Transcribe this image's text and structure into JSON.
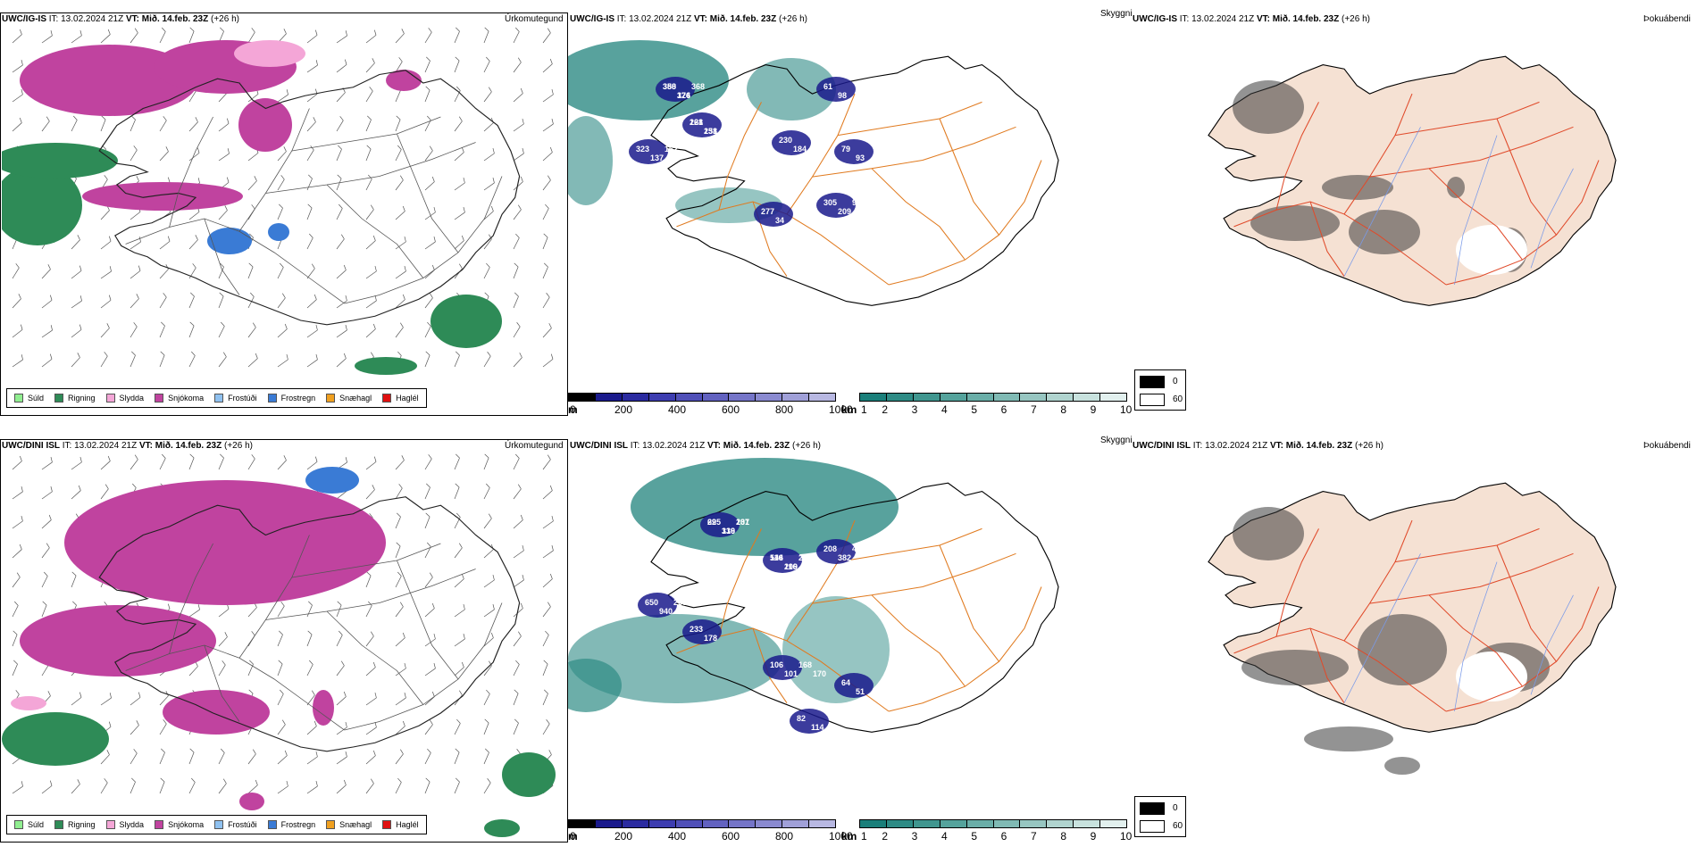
{
  "rows": [
    {
      "model": "UWC/IG-IS",
      "it_label": "IT:",
      "it_value": "13.02.2024 21Z",
      "vt_label": "VT:",
      "vt_value": "Mið. 14.feb. 23Z",
      "lead": "(+26 h)"
    },
    {
      "model": "UWC/DINI ISL",
      "it_label": "IT:",
      "it_value": "13.02.2024 21Z",
      "vt_label": "VT:",
      "vt_value": "Mið. 14.feb. 23Z",
      "lead": "(+26 h)"
    }
  ],
  "panel_titles": {
    "precip": "Úrkomutegund",
    "cloud": "Skyggni",
    "fog": "Þokuábendi"
  },
  "precip_legend": [
    {
      "label": "Súld",
      "color": "#90ee90"
    },
    {
      "label": "Rigning",
      "color": "#2e8b57"
    },
    {
      "label": "Slydda",
      "color": "#f4a6d7"
    },
    {
      "label": "Snjókoma",
      "color": "#c0439f"
    },
    {
      "label": "Frostúði",
      "color": "#8fc1f0"
    },
    {
      "label": "Frostregn",
      "color": "#3a7bd5"
    },
    {
      "label": "Snæhagl",
      "color": "#f0a020"
    },
    {
      "label": "Haglél",
      "color": "#e01010"
    }
  ],
  "visibility_scale": {
    "unit": "m",
    "ticks": [
      "0",
      "200",
      "400",
      "600",
      "800",
      "1000"
    ],
    "colors": [
      "#000000",
      "#1a1a8c",
      "#2b2ba0",
      "#3d3db0",
      "#5050b8",
      "#6262c0",
      "#7575c8",
      "#8a8ad0",
      "#a0a0d8",
      "#b8b8e2"
    ]
  },
  "cloud_scale": {
    "unit": "km",
    "ticks": [
      "1",
      "2",
      "3",
      "4",
      "5",
      "6",
      "7",
      "8",
      "9",
      "10"
    ],
    "colors": [
      "#1a7f7a",
      "#2e8b85",
      "#40968f",
      "#55a39c",
      "#6aaea8",
      "#80bab4",
      "#97c6c1",
      "#b0d4cf",
      "#c8e2de",
      "#e2f0ee"
    ]
  },
  "fog_legend": [
    {
      "label": "0",
      "color": "#000000"
    },
    {
      "label": "60",
      "color": "#ffffff"
    }
  ],
  "vis_labels": [
    [
      [
        "350",
        "176"
      ],
      [
        "161",
        "231"
      ],
      [
        "323",
        "137",
        "162"
      ],
      [
        "230",
        "184"
      ],
      [
        "277",
        "34"
      ],
      [
        "305",
        "209",
        "90",
        "95"
      ],
      [
        "79",
        "93"
      ],
      [
        "61",
        "98"
      ],
      [
        "388",
        "324",
        "368"
      ],
      [
        "228",
        "158"
      ]
    ],
    [
      [
        "225",
        "319",
        "231"
      ],
      [
        "544",
        "209",
        "263"
      ],
      [
        "208",
        "382",
        "488"
      ],
      [
        "650",
        "940",
        "268"
      ],
      [
        "233",
        "178"
      ],
      [
        "106",
        "101",
        "168",
        "170"
      ],
      [
        "64",
        "51"
      ],
      [
        "82",
        "114"
      ],
      [
        "69",
        "136",
        "107"
      ],
      [
        "116",
        "116"
      ]
    ]
  ]
}
